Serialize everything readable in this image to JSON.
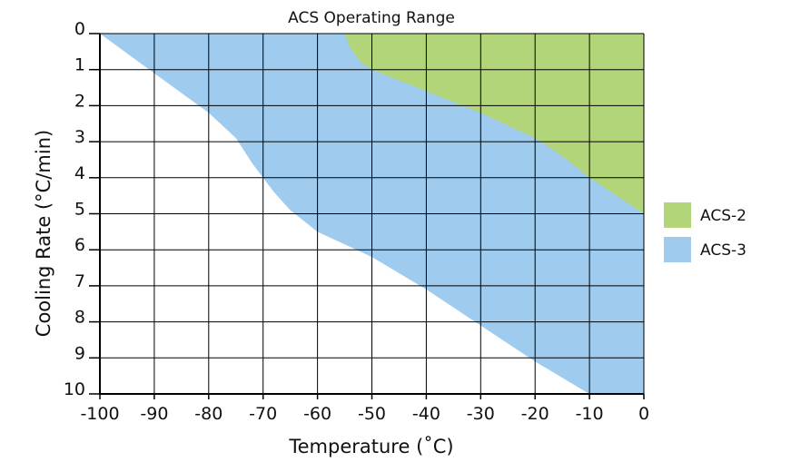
{
  "chart_data": {
    "type": "area",
    "title": "ACS Operating Range",
    "xlabel": "Temperature (˚C)",
    "ylabel": "Cooling Rate (°C/min)",
    "xlim": [
      -100,
      0
    ],
    "ylim": [
      0,
      10
    ],
    "y_inverted": true,
    "grid": true,
    "legend_position": "right",
    "x_ticks": [
      "-100",
      "-90",
      "-80",
      "-70",
      "-60",
      "-50",
      "-40",
      "-30",
      "-20",
      "-10",
      "0"
    ],
    "y_ticks": [
      "0",
      "1",
      "2",
      "3",
      "4",
      "5",
      "6",
      "7",
      "8",
      "9",
      "10"
    ],
    "series": [
      {
        "name": "ACS-3",
        "color": "#9ecbee",
        "lower_boundary": [
          [
            -100,
            0
          ],
          [
            -90,
            1.1
          ],
          [
            -80,
            2.2
          ],
          [
            -75,
            2.9
          ],
          [
            -72,
            3.6
          ],
          [
            -70,
            4.0
          ],
          [
            -68,
            4.4
          ],
          [
            -65,
            4.9
          ],
          [
            -60,
            5.5
          ],
          [
            -50,
            6.2
          ],
          [
            -40,
            7.1
          ],
          [
            -30,
            8.1
          ],
          [
            -20,
            9.1
          ],
          [
            -10,
            10.0
          ],
          [
            0,
            10.0
          ]
        ],
        "upper_boundary": [
          [
            -100,
            0
          ],
          [
            0,
            0
          ],
          [
            0,
            10
          ]
        ]
      },
      {
        "name": "ACS-2",
        "color": "#b3d57a",
        "lower_boundary": [
          [
            -55,
            0
          ],
          [
            -54,
            0.4
          ],
          [
            -52,
            0.8
          ],
          [
            -50,
            1.0
          ],
          [
            -40,
            1.6
          ],
          [
            -30,
            2.2
          ],
          [
            -20,
            2.9
          ],
          [
            -15,
            3.4
          ],
          [
            -10,
            4.0
          ],
          [
            -5,
            4.5
          ],
          [
            0,
            5.0
          ]
        ],
        "upper_boundary": [
          [
            -55,
            0
          ],
          [
            0,
            0
          ],
          [
            0,
            5.0
          ]
        ]
      }
    ]
  }
}
